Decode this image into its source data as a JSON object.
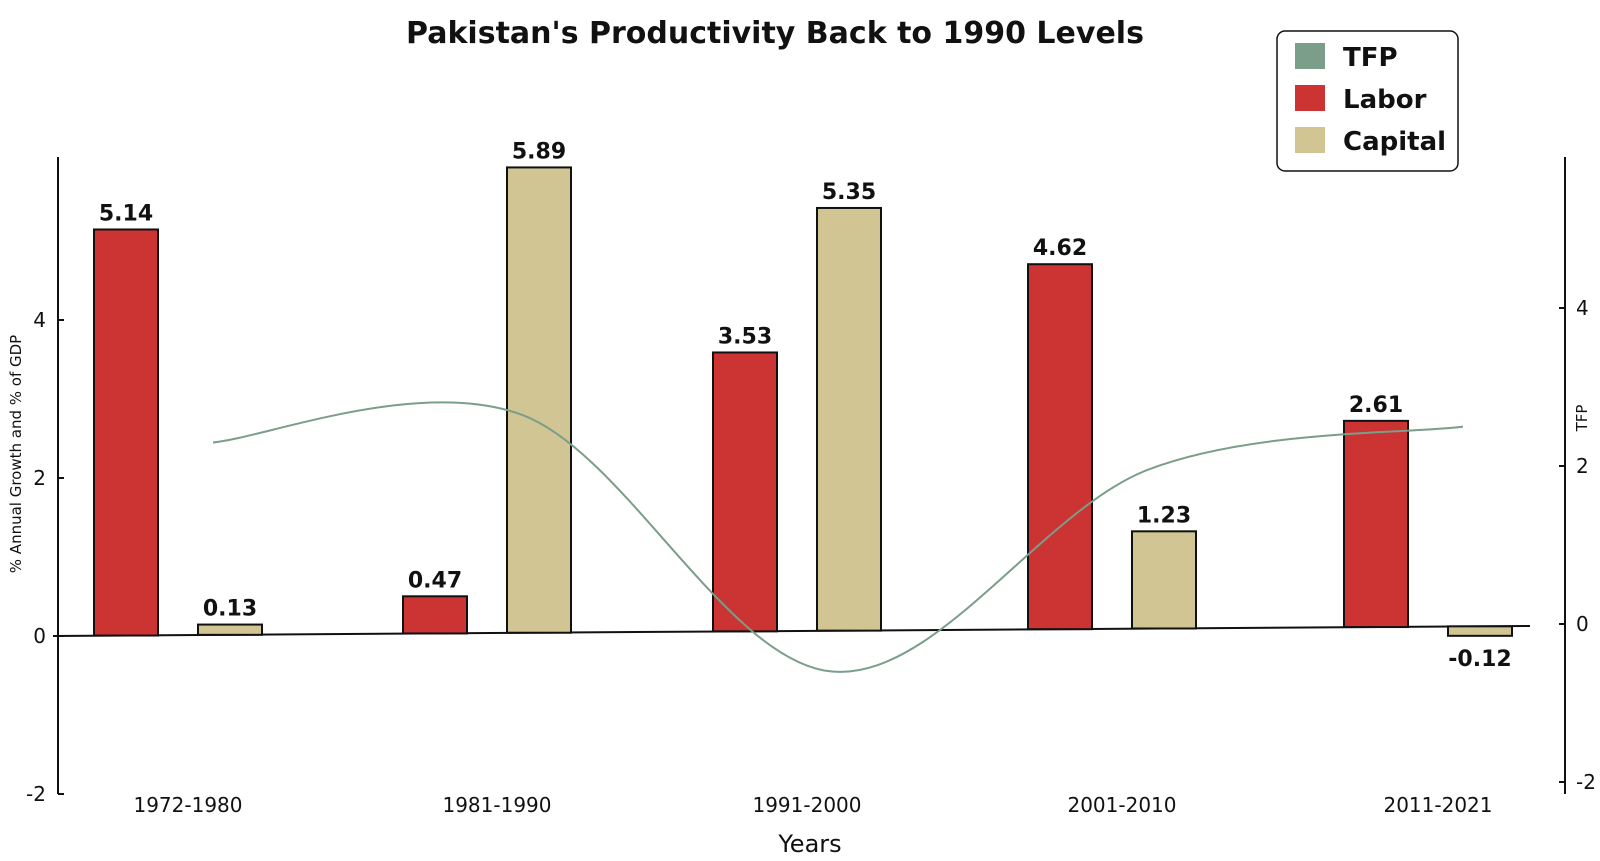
{
  "chart_data": {
    "type": "bar",
    "title": "Pakistan's Productivity Back to 1990 Levels",
    "xlabel": "Years",
    "ylabel": "% Annual Growth and % of GDP",
    "y2label": "TFP",
    "categories": [
      "1972-1980",
      "1981-1990",
      "1991-2000",
      "2001-2010",
      "2011-2021"
    ],
    "ylim": [
      -2,
      6
    ],
    "y_ticks": [
      -2,
      0,
      2,
      4
    ],
    "y2_ticks": [
      -2,
      0,
      2,
      4
    ],
    "grid": false,
    "legend_position": "top-right",
    "series": [
      {
        "name": "TFP",
        "kind": "line",
        "color": "#7a9e8a",
        "values": [
          2.45,
          2.8,
          -0.45,
          2.1,
          2.65
        ]
      },
      {
        "name": "Labor",
        "kind": "bar",
        "color": "#cc3333",
        "values": [
          5.14,
          0.47,
          3.53,
          4.62,
          2.61
        ],
        "labels": [
          "5.14",
          "0.47",
          "3.53",
          "4.62",
          "2.61"
        ]
      },
      {
        "name": "Capital",
        "kind": "bar",
        "color": "#d1c593",
        "values": [
          0.13,
          5.89,
          5.35,
          1.23,
          -0.12
        ],
        "labels": [
          "0.13",
          "5.89",
          "5.35",
          "1.23",
          "-0.12"
        ]
      }
    ]
  }
}
